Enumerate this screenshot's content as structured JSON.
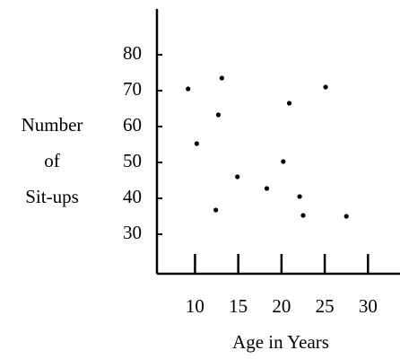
{
  "chart_data": {
    "type": "scatter",
    "xlabel": "Age in Years",
    "ylabel": [
      "Number",
      "of",
      "Sit-ups"
    ],
    "x": [
      9.2,
      10.2,
      13.1,
      12.7,
      14.9,
      12.4,
      18.3,
      20.2,
      20.9,
      22.1,
      22.5,
      25.1,
      27.5
    ],
    "values": [
      70.5,
      55.25,
      73.5,
      63.25,
      46,
      36.75,
      42.75,
      50.25,
      66.5,
      40.5,
      35.25,
      71,
      35
    ],
    "color": "#000000",
    "xlim": [
      5.6,
      33.7
    ],
    "xticks": [
      10,
      15,
      20,
      25,
      30
    ],
    "ylim": [
      19,
      92.75
    ],
    "yticks": [
      30,
      40,
      50,
      60,
      70,
      80
    ],
    "grid": false
  }
}
